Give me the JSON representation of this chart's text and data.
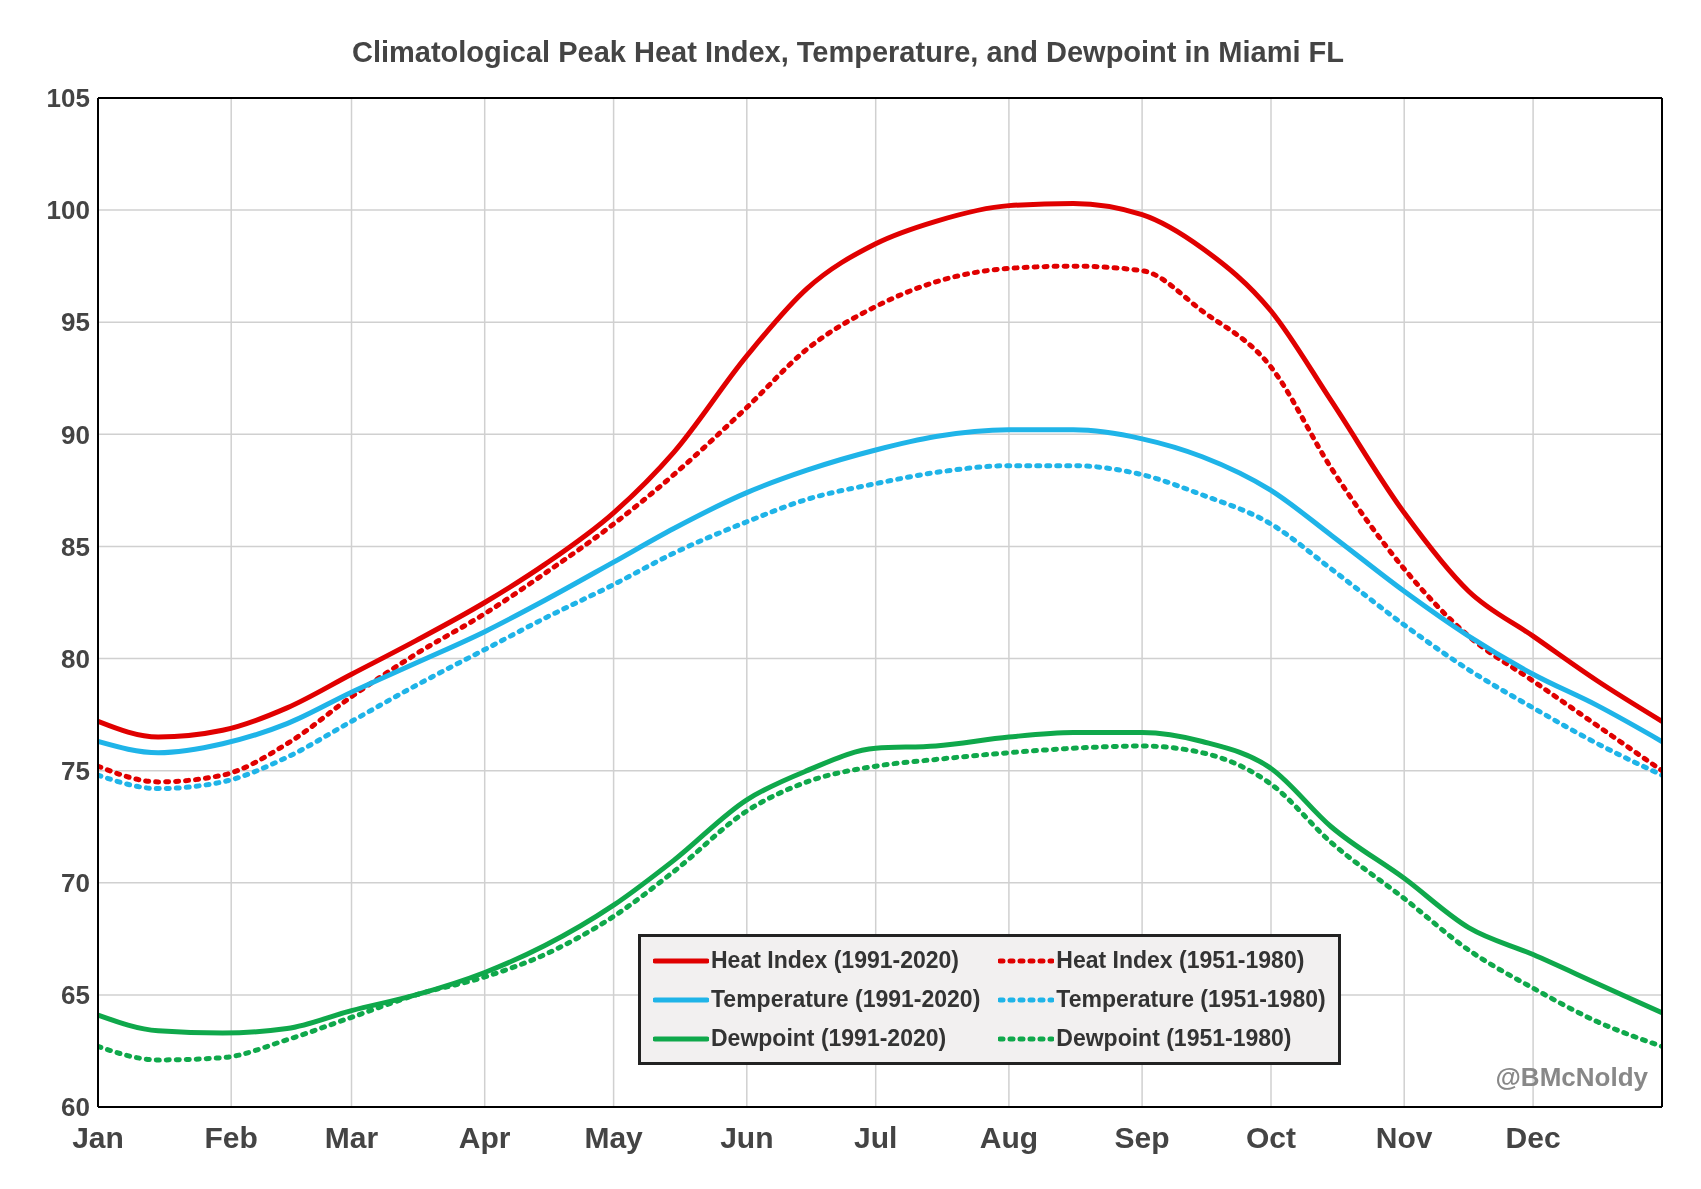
{
  "chart_data": {
    "type": "line",
    "title": "Climatological Peak Heat Index, Temperature, and Dewpoint in Miami FL",
    "x": [
      "--01-01",
      "--01-15",
      "--01-30",
      "--02-14",
      "--03-01",
      "--03-16",
      "--04-01",
      "--04-15",
      "--05-01",
      "--05-15",
      "--06-01",
      "--06-15",
      "--07-01",
      "--07-15",
      "--08-01",
      "--08-16",
      "--09-01",
      "--09-15",
      "--10-01",
      "--10-15",
      "--11-01",
      "--11-16",
      "--12-01",
      "--12-16",
      "--12-31"
    ],
    "series": [
      {
        "name": "Heat Index (1991-2020)",
        "color": "#e00000",
        "line_style": "solid",
        "values": [
          77.2,
          76.5,
          76.8,
          77.8,
          79.3,
          80.8,
          82.5,
          84.2,
          86.5,
          89.2,
          93.5,
          96.5,
          98.5,
          99.5,
          100.2,
          100.3,
          99.8,
          98.3,
          95.5,
          91.5,
          86.5,
          83,
          81,
          79,
          77.2
        ]
      },
      {
        "name": "Heat Index (1951-1980)",
        "color": "#e00000",
        "line_style": "dotted",
        "values": [
          75.2,
          74.5,
          74.8,
          76.2,
          78.3,
          80.2,
          82,
          83.8,
          86,
          88.2,
          91.2,
          93.8,
          95.7,
          96.8,
          97.4,
          97.5,
          97.3,
          95.5,
          93,
          88.5,
          84,
          81,
          79,
          77,
          75
        ]
      },
      {
        "name": "Temperature (1991-2020)",
        "color": "#1fb4e8",
        "line_style": "solid",
        "values": [
          76.3,
          75.8,
          76.2,
          77.1,
          78.5,
          79.8,
          81.2,
          82.6,
          84.3,
          85.8,
          87.4,
          88.4,
          89.3,
          89.9,
          90.2,
          90.2,
          89.8,
          89,
          87.5,
          85.5,
          83,
          81,
          79.3,
          77.9,
          76.3
        ]
      },
      {
        "name": "Temperature (1951-1980)",
        "color": "#1fb4e8",
        "line_style": "dotted",
        "values": [
          74.8,
          74.2,
          74.5,
          75.6,
          77.2,
          78.8,
          80.4,
          81.8,
          83.3,
          84.7,
          86.1,
          87.1,
          87.8,
          88.3,
          88.6,
          88.6,
          88.2,
          87.3,
          86,
          84,
          81.5,
          79.5,
          77.8,
          76.2,
          74.8
        ]
      },
      {
        "name": "Dewpoint (1991-2020)",
        "color": "#0fa84b",
        "line_style": "solid",
        "values": [
          64.1,
          63.4,
          63.3,
          63.5,
          64.3,
          65,
          66,
          67.2,
          69,
          71,
          73.7,
          75,
          76,
          76.1,
          76.5,
          76.7,
          76.7,
          76.3,
          75.1,
          72.5,
          70.2,
          68,
          66.8,
          65.5,
          64.2
        ]
      },
      {
        "name": "Dewpoint (1951-1980)",
        "color": "#0fa84b",
        "line_style": "dotted",
        "values": [
          62.7,
          62.1,
          62.2,
          63,
          64,
          65,
          65.8,
          66.8,
          68.5,
          70.5,
          73.2,
          74.5,
          75.2,
          75.5,
          75.8,
          76,
          76.1,
          75.8,
          74.4,
          71.8,
          69.3,
          67,
          65.3,
          63.8,
          62.7
        ]
      }
    ],
    "xlim": [
      "--01-01",
      "--12-31"
    ],
    "xticks": [
      {
        "value": "--01-01",
        "label": "Jan"
      },
      {
        "value": "--02-01",
        "label": "Feb"
      },
      {
        "value": "--03-01",
        "label": "Mar"
      },
      {
        "value": "--04-01",
        "label": "Apr"
      },
      {
        "value": "--05-01",
        "label": "May"
      },
      {
        "value": "--06-01",
        "label": "Jun"
      },
      {
        "value": "--07-01",
        "label": "Jul"
      },
      {
        "value": "--08-01",
        "label": "Aug"
      },
      {
        "value": "--09-01",
        "label": "Sep"
      },
      {
        "value": "--10-01",
        "label": "Oct"
      },
      {
        "value": "--11-01",
        "label": "Nov"
      },
      {
        "value": "--12-01",
        "label": "Dec"
      }
    ],
    "ylim": [
      60,
      105
    ],
    "yticks": [
      60,
      65,
      70,
      75,
      80,
      85,
      90,
      95,
      100,
      105
    ],
    "grid": true,
    "legend": "bottom",
    "marker": "none",
    "annotations": [
      "@BMcNoldy"
    ]
  }
}
